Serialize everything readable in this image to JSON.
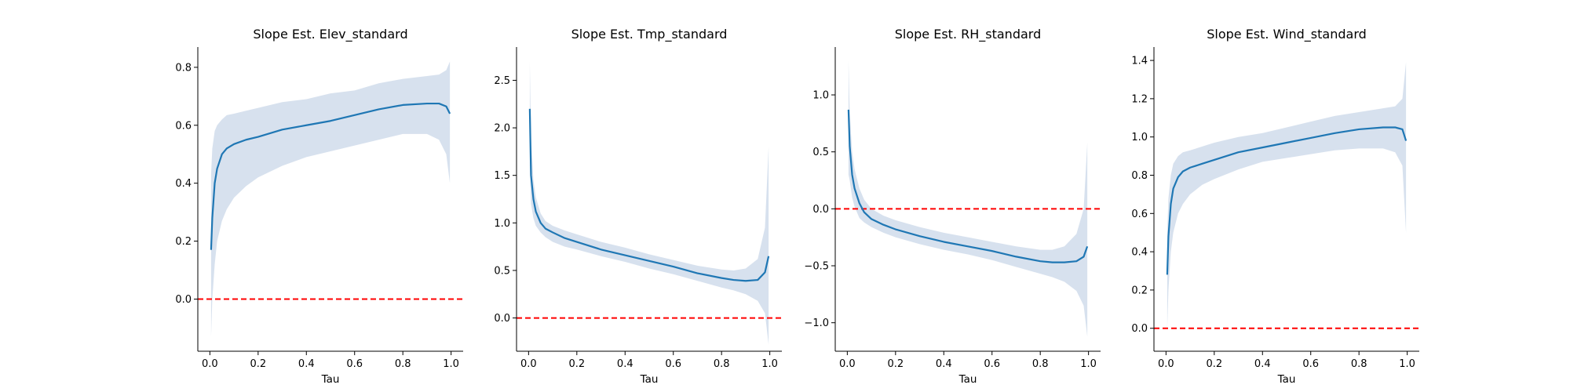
{
  "colors": {
    "line": "#1f77b4",
    "band": "#b0c4de",
    "reference_line": "#ff0000",
    "axis": "#000000"
  },
  "chart_data": [
    {
      "type": "line",
      "title": "Slope Est. Elev_standard",
      "xlabel": "Tau",
      "ylabel": "",
      "xlim": [
        -0.05,
        1.05
      ],
      "ylim": [
        -0.18,
        0.87
      ],
      "xticks": [
        0.0,
        0.2,
        0.4,
        0.6,
        0.8,
        1.0
      ],
      "xtick_labels": [
        "0.0",
        "0.2",
        "0.4",
        "0.6",
        "0.8",
        "1.0"
      ],
      "yticks": [
        0.0,
        0.2,
        0.4,
        0.6,
        0.8
      ],
      "ytick_labels": [
        "0.0",
        "0.2",
        "0.4",
        "0.6",
        "0.8"
      ],
      "reference_line": {
        "y": 0.0,
        "style": "dashed"
      },
      "grid": false,
      "series": [
        {
          "x": [
            0.005,
            0.01,
            0.02,
            0.03,
            0.05,
            0.07,
            0.1,
            0.15,
            0.2,
            0.3,
            0.4,
            0.5,
            0.6,
            0.7,
            0.8,
            0.9,
            0.95,
            0.98,
            0.995
          ],
          "values": [
            0.17,
            0.28,
            0.4,
            0.45,
            0.5,
            0.52,
            0.535,
            0.55,
            0.56,
            0.585,
            0.6,
            0.615,
            0.635,
            0.655,
            0.67,
            0.675,
            0.675,
            0.665,
            0.64
          ],
          "lower": [
            -0.13,
            0.0,
            0.12,
            0.2,
            0.27,
            0.31,
            0.35,
            0.39,
            0.42,
            0.46,
            0.49,
            0.51,
            0.53,
            0.55,
            0.57,
            0.57,
            0.55,
            0.5,
            0.4
          ],
          "upper": [
            0.43,
            0.52,
            0.58,
            0.6,
            0.62,
            0.635,
            0.64,
            0.65,
            0.66,
            0.68,
            0.69,
            0.71,
            0.72,
            0.745,
            0.76,
            0.77,
            0.775,
            0.79,
            0.82
          ]
        }
      ]
    },
    {
      "type": "line",
      "title": "Slope Est. Tmp_standard",
      "xlabel": "Tau",
      "ylabel": "",
      "xlim": [
        -0.05,
        1.05
      ],
      "ylim": [
        -0.35,
        2.85
      ],
      "xticks": [
        0.0,
        0.2,
        0.4,
        0.6,
        0.8,
        1.0
      ],
      "xtick_labels": [
        "0.0",
        "0.2",
        "0.4",
        "0.6",
        "0.8",
        "1.0"
      ],
      "yticks": [
        0.0,
        0.5,
        1.0,
        1.5,
        2.0,
        2.5
      ],
      "ytick_labels": [
        "0.0",
        "0.5",
        "1.0",
        "1.5",
        "2.0",
        "2.5"
      ],
      "reference_line": {
        "y": 0.0,
        "style": "dashed"
      },
      "grid": false,
      "series": [
        {
          "x": [
            0.005,
            0.01,
            0.02,
            0.03,
            0.05,
            0.07,
            0.1,
            0.15,
            0.2,
            0.3,
            0.4,
            0.5,
            0.6,
            0.7,
            0.8,
            0.85,
            0.9,
            0.95,
            0.98,
            0.995
          ],
          "values": [
            2.2,
            1.5,
            1.25,
            1.12,
            1.0,
            0.94,
            0.9,
            0.84,
            0.8,
            0.72,
            0.66,
            0.6,
            0.54,
            0.47,
            0.42,
            0.4,
            0.39,
            0.4,
            0.48,
            0.65
          ],
          "lower": [
            1.6,
            1.2,
            1.05,
            0.97,
            0.9,
            0.85,
            0.8,
            0.75,
            0.72,
            0.65,
            0.59,
            0.52,
            0.46,
            0.39,
            0.32,
            0.29,
            0.25,
            0.18,
            0.05,
            -0.28
          ],
          "upper": [
            2.7,
            1.9,
            1.45,
            1.27,
            1.1,
            1.02,
            0.97,
            0.92,
            0.88,
            0.8,
            0.74,
            0.67,
            0.61,
            0.55,
            0.51,
            0.5,
            0.52,
            0.62,
            0.95,
            1.8
          ]
        }
      ]
    },
    {
      "type": "line",
      "title": "Slope Est. RH_standard",
      "xlabel": "Tau",
      "ylabel": "",
      "xlim": [
        -0.05,
        1.05
      ],
      "ylim": [
        -1.25,
        1.42
      ],
      "xticks": [
        0.0,
        0.2,
        0.4,
        0.6,
        0.8,
        1.0
      ],
      "xtick_labels": [
        "0.0",
        "0.2",
        "0.4",
        "0.6",
        "0.8",
        "1.0"
      ],
      "yticks": [
        -1.0,
        -0.5,
        0.0,
        0.5,
        1.0
      ],
      "ytick_labels": [
        "−1.0",
        "−0.5",
        "0.0",
        "0.5",
        "1.0"
      ],
      "reference_line": {
        "y": 0.0,
        "style": "dashed"
      },
      "grid": false,
      "series": [
        {
          "x": [
            0.005,
            0.01,
            0.02,
            0.03,
            0.05,
            0.07,
            0.1,
            0.15,
            0.2,
            0.3,
            0.4,
            0.5,
            0.6,
            0.7,
            0.8,
            0.85,
            0.9,
            0.95,
            0.98,
            0.995
          ],
          "values": [
            0.87,
            0.55,
            0.3,
            0.18,
            0.05,
            -0.03,
            -0.09,
            -0.14,
            -0.18,
            -0.24,
            -0.29,
            -0.33,
            -0.37,
            -0.42,
            -0.46,
            -0.47,
            -0.47,
            -0.46,
            -0.42,
            -0.33
          ],
          "lower": [
            0.3,
            0.25,
            0.1,
            0.02,
            -0.08,
            -0.12,
            -0.16,
            -0.21,
            -0.25,
            -0.31,
            -0.36,
            -0.4,
            -0.45,
            -0.51,
            -0.57,
            -0.6,
            -0.64,
            -0.72,
            -0.85,
            -1.12
          ],
          "upper": [
            1.3,
            0.85,
            0.5,
            0.35,
            0.18,
            0.08,
            0.0,
            -0.06,
            -0.1,
            -0.16,
            -0.21,
            -0.25,
            -0.29,
            -0.33,
            -0.36,
            -0.36,
            -0.33,
            -0.22,
            0.0,
            0.58
          ]
        }
      ]
    },
    {
      "type": "line",
      "title": "Slope Est. Wind_standard",
      "xlabel": "Tau",
      "ylabel": "",
      "xlim": [
        -0.05,
        1.05
      ],
      "ylim": [
        -0.12,
        1.47
      ],
      "xticks": [
        0.0,
        0.2,
        0.4,
        0.6,
        0.8,
        1.0
      ],
      "xtick_labels": [
        "0.0",
        "0.2",
        "0.4",
        "0.6",
        "0.8",
        "1.0"
      ],
      "yticks": [
        0.0,
        0.2,
        0.4,
        0.6,
        0.8,
        1.0,
        1.2,
        1.4
      ],
      "ytick_labels": [
        "0.0",
        "0.2",
        "0.4",
        "0.6",
        "0.8",
        "1.0",
        "1.2",
        "1.4"
      ],
      "reference_line": {
        "y": 0.0,
        "style": "dashed"
      },
      "grid": false,
      "series": [
        {
          "x": [
            0.005,
            0.01,
            0.02,
            0.03,
            0.05,
            0.07,
            0.1,
            0.15,
            0.2,
            0.3,
            0.4,
            0.5,
            0.6,
            0.7,
            0.8,
            0.9,
            0.95,
            0.98,
            0.995
          ],
          "values": [
            0.28,
            0.48,
            0.65,
            0.73,
            0.79,
            0.82,
            0.84,
            0.86,
            0.88,
            0.92,
            0.945,
            0.97,
            0.995,
            1.02,
            1.04,
            1.05,
            1.05,
            1.04,
            0.98
          ],
          "lower": [
            0.0,
            0.2,
            0.4,
            0.5,
            0.6,
            0.65,
            0.7,
            0.75,
            0.78,
            0.83,
            0.87,
            0.89,
            0.91,
            0.93,
            0.94,
            0.94,
            0.92,
            0.85,
            0.5
          ],
          "upper": [
            0.5,
            0.68,
            0.8,
            0.86,
            0.9,
            0.92,
            0.93,
            0.95,
            0.97,
            1.0,
            1.02,
            1.05,
            1.08,
            1.11,
            1.13,
            1.15,
            1.16,
            1.2,
            1.39
          ]
        }
      ]
    }
  ]
}
